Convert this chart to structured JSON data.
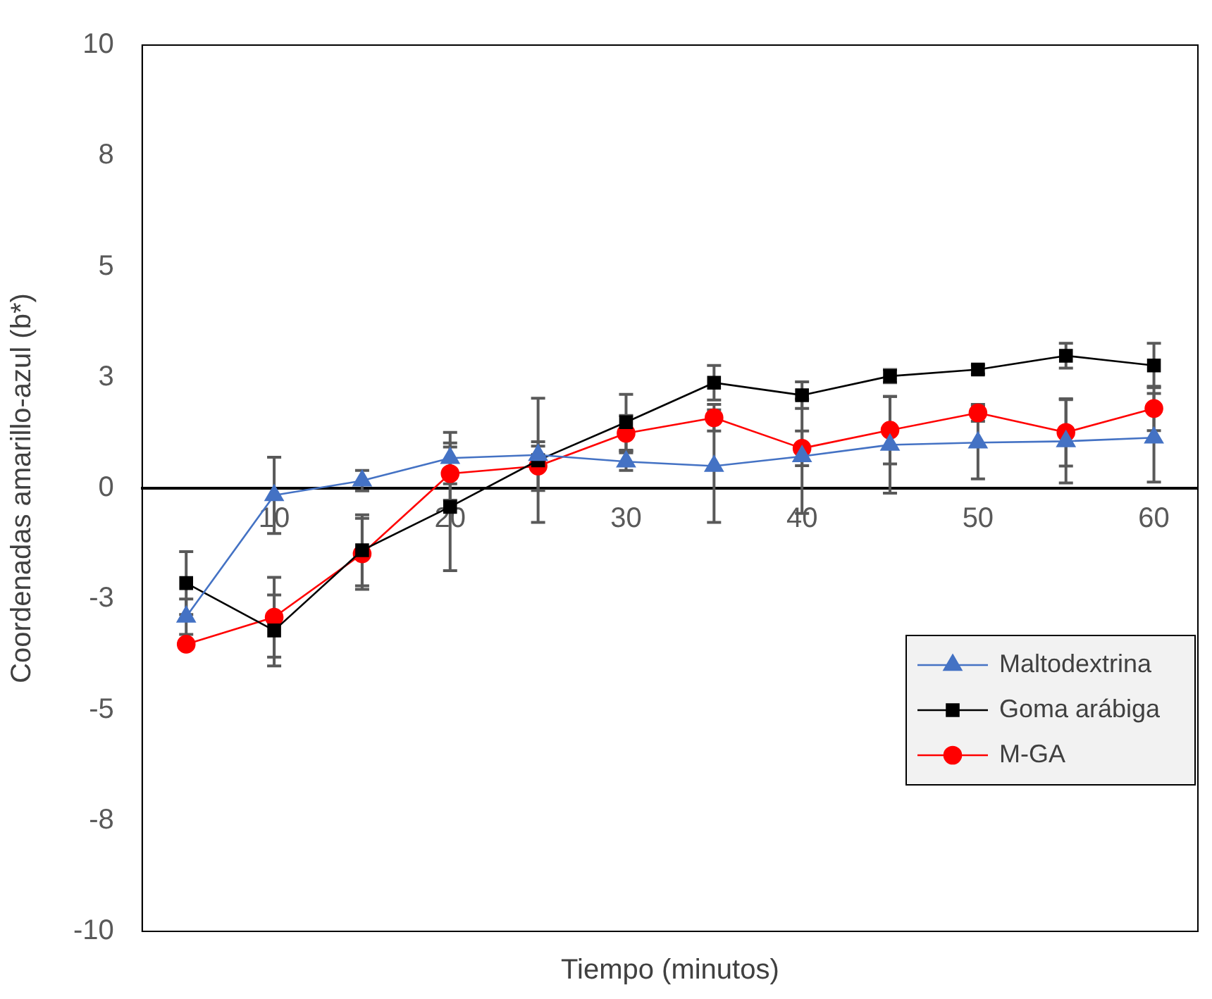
{
  "chart_data": {
    "type": "line",
    "xlabel": "Tiempo (minutos)",
    "ylabel": "Coordenadas amarillo-azul (b*)",
    "categories": [
      null,
      "10",
      null,
      "20",
      null,
      "30",
      null,
      "40",
      null,
      "50",
      null,
      "60"
    ],
    "ylim": [
      -10,
      10
    ],
    "yticks": [
      {
        "value": -10,
        "label": "-10"
      },
      {
        "value": -7.5,
        "label": "-8"
      },
      {
        "value": -5,
        "label": "-5"
      },
      {
        "value": -2.5,
        "label": "-3"
      },
      {
        "value": 0,
        "label": "0"
      },
      {
        "value": 2.5,
        "label": "3"
      },
      {
        "value": 5,
        "label": "5"
      },
      {
        "value": 7.5,
        "label": "8"
      },
      {
        "value": 10,
        "label": "10"
      }
    ],
    "grid": false,
    "legend": "bottom right",
    "series": [
      {
        "name": "Maltodextrina",
        "color": "#4472c4",
        "marker": "triangle",
        "values": [
          -2.9,
          -0.16,
          0.17,
          0.68,
          0.75,
          0.6,
          0.5,
          0.72,
          0.98,
          1.03,
          1.06,
          1.14
        ],
        "errors": [
          0.4,
          0.86,
          0.23,
          0.58,
          0.2,
          0.2,
          1.27,
          1.29,
          1.09,
          0.82,
          0.94,
          1.0
        ]
      },
      {
        "name": "Goma arábiga",
        "color": "#000000",
        "marker": "square",
        "values": [
          -2.14,
          -3.21,
          -1.4,
          -0.42,
          0.63,
          1.49,
          2.38,
          2.1,
          2.53,
          2.68,
          2.99,
          2.77
        ],
        "errors": [
          0.71,
          0.8,
          0.8,
          1.44,
          1.4,
          0.63,
          0.39,
          0.3,
          0.15,
          0.1,
          0.28,
          0.5
        ]
      },
      {
        "name": "M-GA",
        "color": "#ff0000",
        "marker": "circle",
        "values": [
          -3.52,
          -2.91,
          -1.48,
          0.33,
          0.5,
          1.24,
          1.59,
          0.9,
          1.31,
          1.7,
          1.26,
          1.8
        ],
        "errors": [
          null,
          0.9,
          0.8,
          0.6,
          0.55,
          0.4,
          0.3,
          0.39,
          0.76,
          0.19,
          0.76,
          0.5
        ]
      }
    ]
  }
}
